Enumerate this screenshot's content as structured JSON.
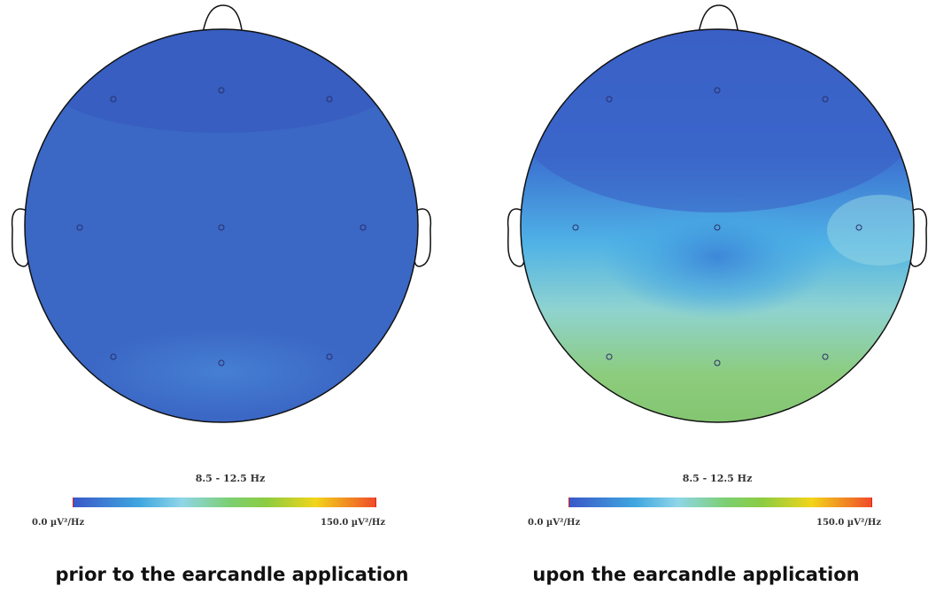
{
  "panels": [
    {
      "frequency_label": "8.5 - 12.5 Hz",
      "scale_min": "0.0 µV²/Hz",
      "scale_max": "150.0 µV²/Hz",
      "caption": "prior to the earcandle application"
    },
    {
      "frequency_label": "8.5 - 12.5 Hz",
      "scale_min": "0.0 µV²/Hz",
      "scale_max": "150.0 µV²/Hz",
      "caption": "upon the earcandle application"
    }
  ],
  "colors": {
    "low": "#3a57c8",
    "mid": "#7ccf70",
    "high": "#f04a2a"
  }
}
